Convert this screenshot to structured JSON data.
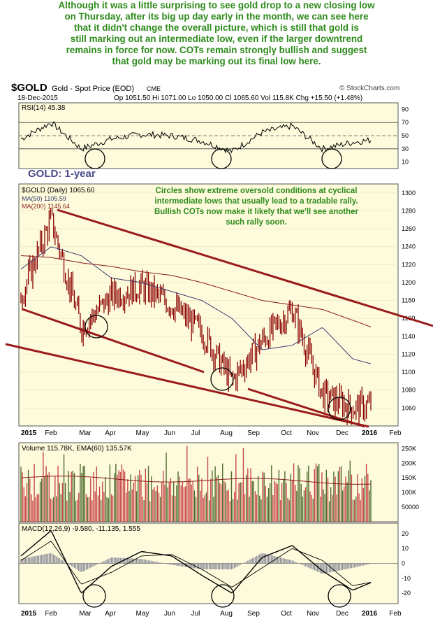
{
  "commentary": [
    "Although it was a little surprising to see gold drop to a new closing low",
    "on Thursday, after its big up day early in the month, we can see here",
    "that it didn't change the overall picture, which is still that gold is",
    "still marking out an intermediate low, even if the larger downtrend",
    "remains in force for now.  COTs remain strongly bullish and suggest",
    "that gold may be marking out its final low here."
  ],
  "header": {
    "symbol": "$GOLD",
    "name": "Gold - Spot Price (EOD)",
    "exchange": "CME",
    "date": "18-Dec-2015",
    "ohlc": "Op 1051.50  Hi 1071.00  Lo 1050.00  Cl 1065.60  Vol 115.8K  Chg +15.50 (+1.48%)",
    "credit": "© StockCharts.com"
  },
  "annotations": {
    "gold_label": "GOLD: 1-year",
    "circles_note": [
      "Circles show extreme oversold conditions at cyclical",
      "intermediate lows that usually lead to a tradable rally.",
      "Bullish COTs now make it likely that we'll see another",
      "such rally soon."
    ]
  },
  "colors": {
    "background": "#ffffff",
    "panel": "#fdfbdc",
    "commentary": "#2e8b1c",
    "trendline": "#9b1b1b",
    "ma50": "#3a3a6e",
    "ma200": "#8b1a1a",
    "price_bar": "#8b0000",
    "volume_up": "#4f6b2e",
    "volume_down": "#c8474a",
    "ema60": "#8b1a1a",
    "macd_hist": "#8c8c99",
    "gold_label": "#4a4a8a",
    "note": "#2e8b1c"
  },
  "chart_data": [
    {
      "type": "line",
      "panel": "rsi",
      "legend": "RSI(14) 45.38",
      "ylim": [
        0,
        100
      ],
      "yticks": [
        10,
        30,
        50,
        70,
        90
      ],
      "reference_lines": [
        30,
        50,
        70
      ],
      "x_months": [
        "Jan",
        "Feb",
        "Mar",
        "Apr",
        "May",
        "Jun",
        "Jul",
        "Aug",
        "Sep",
        "Oct",
        "Nov",
        "Dec",
        "Jan",
        "Feb"
      ],
      "oversold_circle_months": [
        "Mar",
        "Jul",
        "Nov"
      ],
      "monthly_values": [
        45,
        70,
        30,
        45,
        52,
        50,
        42,
        26,
        55,
        65,
        30,
        40,
        45.38
      ]
    },
    {
      "type": "line",
      "panel": "price",
      "title": "$GOLD (Daily) 1065.60",
      "series": [
        {
          "name": "MA(50) 1105.59",
          "values": [
            1215,
            1240,
            1230,
            1205,
            1200,
            1190,
            1180,
            1160,
            1125,
            1130,
            1150,
            1115,
            1105.59
          ]
        },
        {
          "name": "MA(200) 1145.64",
          "values": [
            1230,
            1228,
            1222,
            1218,
            1212,
            1208,
            1200,
            1190,
            1180,
            1175,
            1170,
            1158,
            1145.64
          ]
        }
      ],
      "close_monthly": [
        1185,
        1270,
        1150,
        1185,
        1195,
        1175,
        1145,
        1090,
        1135,
        1170,
        1075,
        1060,
        1065.6
      ],
      "yticks": [
        1060,
        1080,
        1100,
        1120,
        1140,
        1160,
        1180,
        1200,
        1220,
        1240,
        1260,
        1280,
        1300
      ],
      "ylim": [
        1040,
        1310
      ],
      "xticks": [
        "2015",
        "Feb",
        "Mar",
        "Apr",
        "May",
        "Jun",
        "Jul",
        "Aug",
        "Sep",
        "Oct",
        "Nov",
        "Dec",
        "2016",
        "Feb"
      ]
    },
    {
      "type": "bar",
      "panel": "volume",
      "legend": "Volume 115.78K, EMA(60) 135.57K",
      "yticks": [
        "50000",
        "100K",
        "150K",
        "200K",
        "250K"
      ],
      "ylim": [
        0,
        270000
      ],
      "ema_last": 135570,
      "volume_last": 115780
    },
    {
      "type": "line",
      "panel": "macd",
      "legend": "MACD(12,26,9) -9.580, -11.135, 1.555",
      "yticks": [
        -20,
        -10,
        0,
        10,
        20
      ],
      "ylim": [
        -27,
        27
      ],
      "series": [
        {
          "name": "MACD",
          "values": [
            5,
            22,
            -20,
            -2,
            8,
            5,
            -8,
            -20,
            4,
            12,
            -5,
            -18,
            -9.58
          ]
        },
        {
          "name": "Signal",
          "values": [
            2,
            15,
            -14,
            -6,
            5,
            6,
            -4,
            -16,
            -3,
            10,
            2,
            -15,
            -11.135
          ]
        }
      ],
      "histogram_last": 1.555,
      "xticks": [
        "2015",
        "Feb",
        "Mar",
        "Apr",
        "May",
        "Jun",
        "Jul",
        "Aug",
        "Sep",
        "Oct",
        "Nov",
        "Dec",
        "2016",
        "Feb"
      ]
    }
  ]
}
